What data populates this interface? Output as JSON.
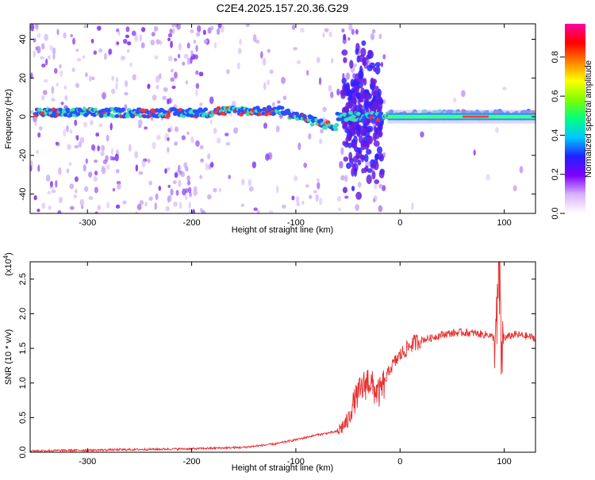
{
  "figure": {
    "title": "C2E4.2025.157.20.36.G29"
  },
  "chart_data": [
    {
      "type": "heatmap",
      "xlabel": "Height of straight line (km)",
      "ylabel": "Frequency (Hz)",
      "xlim": [
        -355,
        130
      ],
      "ylim": [
        -50,
        48
      ],
      "xticks": [
        -300,
        -200,
        -100,
        0,
        100
      ],
      "yticks": [
        -40,
        -20,
        0,
        20,
        40
      ],
      "colorbar": {
        "label": "Normalized spectral amplitude",
        "range": [
          0.0,
          0.97
        ],
        "ticks": [
          0.0,
          0.2,
          0.4,
          0.6,
          0.8
        ],
        "colormap": [
          "#ffffff",
          "#d9b3ff",
          "#8000ff",
          "#2020ff",
          "#00c8ff",
          "#00ff80",
          "#80ff00",
          "#ffff00",
          "#ff8000",
          "#ff0000",
          "#ff00a0"
        ]
      },
      "colors": {
        "noise": "#7d2cf0",
        "ridge_low": "#2850ff",
        "ridge_high": "#38e0b0",
        "hot": "#ff3030"
      },
      "segments": [
        {
          "x_range": [
            -350,
            -180
          ],
          "center_freq": 2,
          "amplitude": 0.45,
          "note_vis": "fragmented ridge with strong background noise"
        },
        {
          "x_range": [
            -180,
            -110
          ],
          "center_freq": 3,
          "amplitude": 0.5
        },
        {
          "x_range": [
            -110,
            -60
          ],
          "center_freq": -5,
          "amplitude": 0.55
        },
        {
          "x_range": [
            -60,
            -15
          ],
          "center_freq": 0,
          "amplitude": 0.6,
          "note_vis": "broad spread from -45 to 45 Hz"
        },
        {
          "x_range": [
            -15,
            130
          ],
          "center_freq": 1,
          "amplitude": 0.85
        }
      ]
    },
    {
      "type": "line",
      "xlabel": "Height of straight line (km)",
      "ylabel": "SNR (10 * v/v)",
      "yscale_label": "(x10",
      "yscale_exp": "4",
      "xlim": [
        -355,
        130
      ],
      "ylim": [
        0,
        2.75
      ],
      "xticks": [
        -300,
        -200,
        -100,
        0,
        100
      ],
      "yticks": [
        0.0,
        0.5,
        1.0,
        1.5,
        2.0,
        2.5
      ],
      "series": [
        {
          "color": "#e83030",
          "x": [
            -355,
            -300,
            -250,
            -200,
            -150,
            -120,
            -100,
            -80,
            -60,
            -50,
            -45,
            -40,
            -35,
            -30,
            -25,
            -20,
            -15,
            -10,
            0,
            10,
            20,
            30,
            40,
            50,
            60,
            70,
            80,
            85,
            90,
            93,
            95,
            97,
            100,
            110,
            120,
            130
          ],
          "y": [
            0.02,
            0.03,
            0.04,
            0.05,
            0.07,
            0.12,
            0.18,
            0.25,
            0.3,
            0.45,
            0.7,
            0.85,
            0.95,
            1.05,
            0.9,
            0.85,
            1.0,
            1.2,
            1.4,
            1.55,
            1.62,
            1.65,
            1.7,
            1.72,
            1.73,
            1.72,
            1.7,
            1.7,
            1.65,
            1.75,
            2.7,
            1.4,
            1.65,
            1.7,
            1.68,
            1.65
          ]
        }
      ]
    }
  ]
}
